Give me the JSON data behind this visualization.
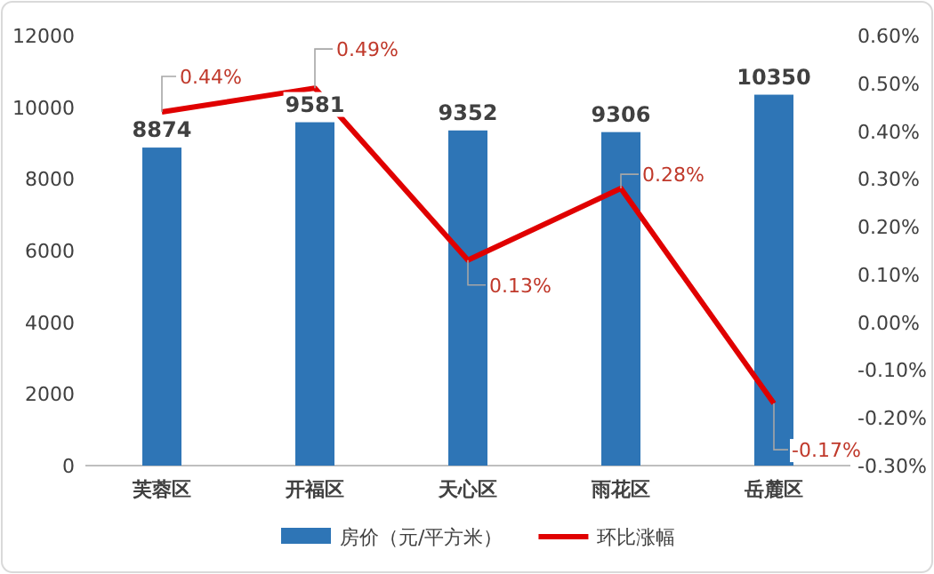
{
  "chart_data": {
    "type": "bar",
    "categories": [
      "芙蓉区",
      "开福区",
      "天心区",
      "雨花区",
      "岳麓区"
    ],
    "series": [
      {
        "name": "房价（元/平方米）",
        "color": "#2e75b6",
        "values": [
          8874,
          9581,
          9352,
          9306,
          10350
        ],
        "value_labels": [
          "8874",
          "9581",
          "9352",
          "9306",
          "10350"
        ]
      },
      {
        "type": "line",
        "name": "环比涨幅",
        "color": "#e00000",
        "axis": "y2",
        "values": [
          0.44,
          0.49,
          0.13,
          0.28,
          -0.17
        ],
        "value_labels": [
          "0.44%",
          "0.49%",
          "0.13%",
          "0.28%",
          "-0.17%"
        ]
      }
    ],
    "ylim": [
      0,
      12000
    ],
    "yticks": [
      0,
      2000,
      4000,
      6000,
      8000,
      10000,
      12000
    ],
    "y2lim": [
      -0.3,
      0.6
    ],
    "y2ticks": [
      {
        "value": -0.3,
        "label": "-0.30%"
      },
      {
        "value": -0.2,
        "label": "-0.20%"
      },
      {
        "value": -0.1,
        "label": "-0.10%"
      },
      {
        "value": 0,
        "label": "0.00%"
      },
      {
        "value": 0.1,
        "label": "0.10%"
      },
      {
        "value": 0.2,
        "label": "0.20%"
      },
      {
        "value": 0.3,
        "label": "0.30%"
      },
      {
        "value": 0.4,
        "label": "0.40%"
      },
      {
        "value": 0.5,
        "label": "0.50%"
      },
      {
        "value": 0.6,
        "label": "0.60%"
      }
    ],
    "legend": "bottom",
    "marker": "none",
    "line_style": "solid"
  }
}
